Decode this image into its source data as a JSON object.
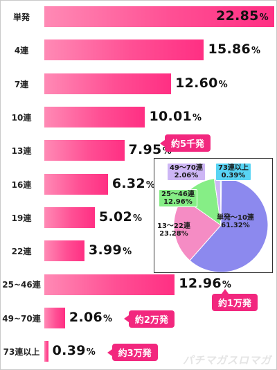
{
  "chart_data": [
    {
      "type": "bar",
      "orientation": "horizontal",
      "categories": [
        "単発",
        "4連",
        "7連",
        "10連",
        "13連",
        "16連",
        "19連",
        "22連",
        "25~46連",
        "49~70連",
        "73連以上"
      ],
      "values": [
        22.85,
        15.86,
        12.6,
        10.01,
        7.95,
        6.32,
        5.02,
        3.99,
        12.96,
        2.06,
        0.39
      ],
      "value_labels": [
        "22.85",
        "15.86",
        "12.60",
        "10.01",
        "7.95",
        "6.32",
        "5.02",
        "3.99",
        "12.96",
        "2.06",
        "0.39"
      ],
      "unit": "%",
      "annotations": [
        {
          "category": "13連",
          "text": "約5千発"
        },
        {
          "category": "25~46連",
          "text": "約1万発"
        },
        {
          "category": "49~70連",
          "text": "約2万発"
        },
        {
          "category": "73連以上",
          "text": "約3万発"
        }
      ],
      "bar_color": "#ff4f94"
    },
    {
      "type": "pie",
      "slices": [
        {
          "label": "単発〜10連",
          "value": 61.32,
          "value_label": "61.32%",
          "color": "#8c89ee"
        },
        {
          "label": "13〜22連",
          "value": 23.28,
          "value_label": "23.28%",
          "color": "#f58cc4"
        },
        {
          "label": "25〜46連",
          "value": 12.96,
          "value_label": "12.96%",
          "color": "#86ee86"
        },
        {
          "label": "49〜70連",
          "value": 2.06,
          "value_label": "2.06%",
          "color": "#cdb6f5"
        },
        {
          "label": "73連以上",
          "value": 0.39,
          "value_label": "0.39%",
          "color": "#58d4f4"
        }
      ]
    }
  ],
  "watermark": "パチマガスロマガ"
}
